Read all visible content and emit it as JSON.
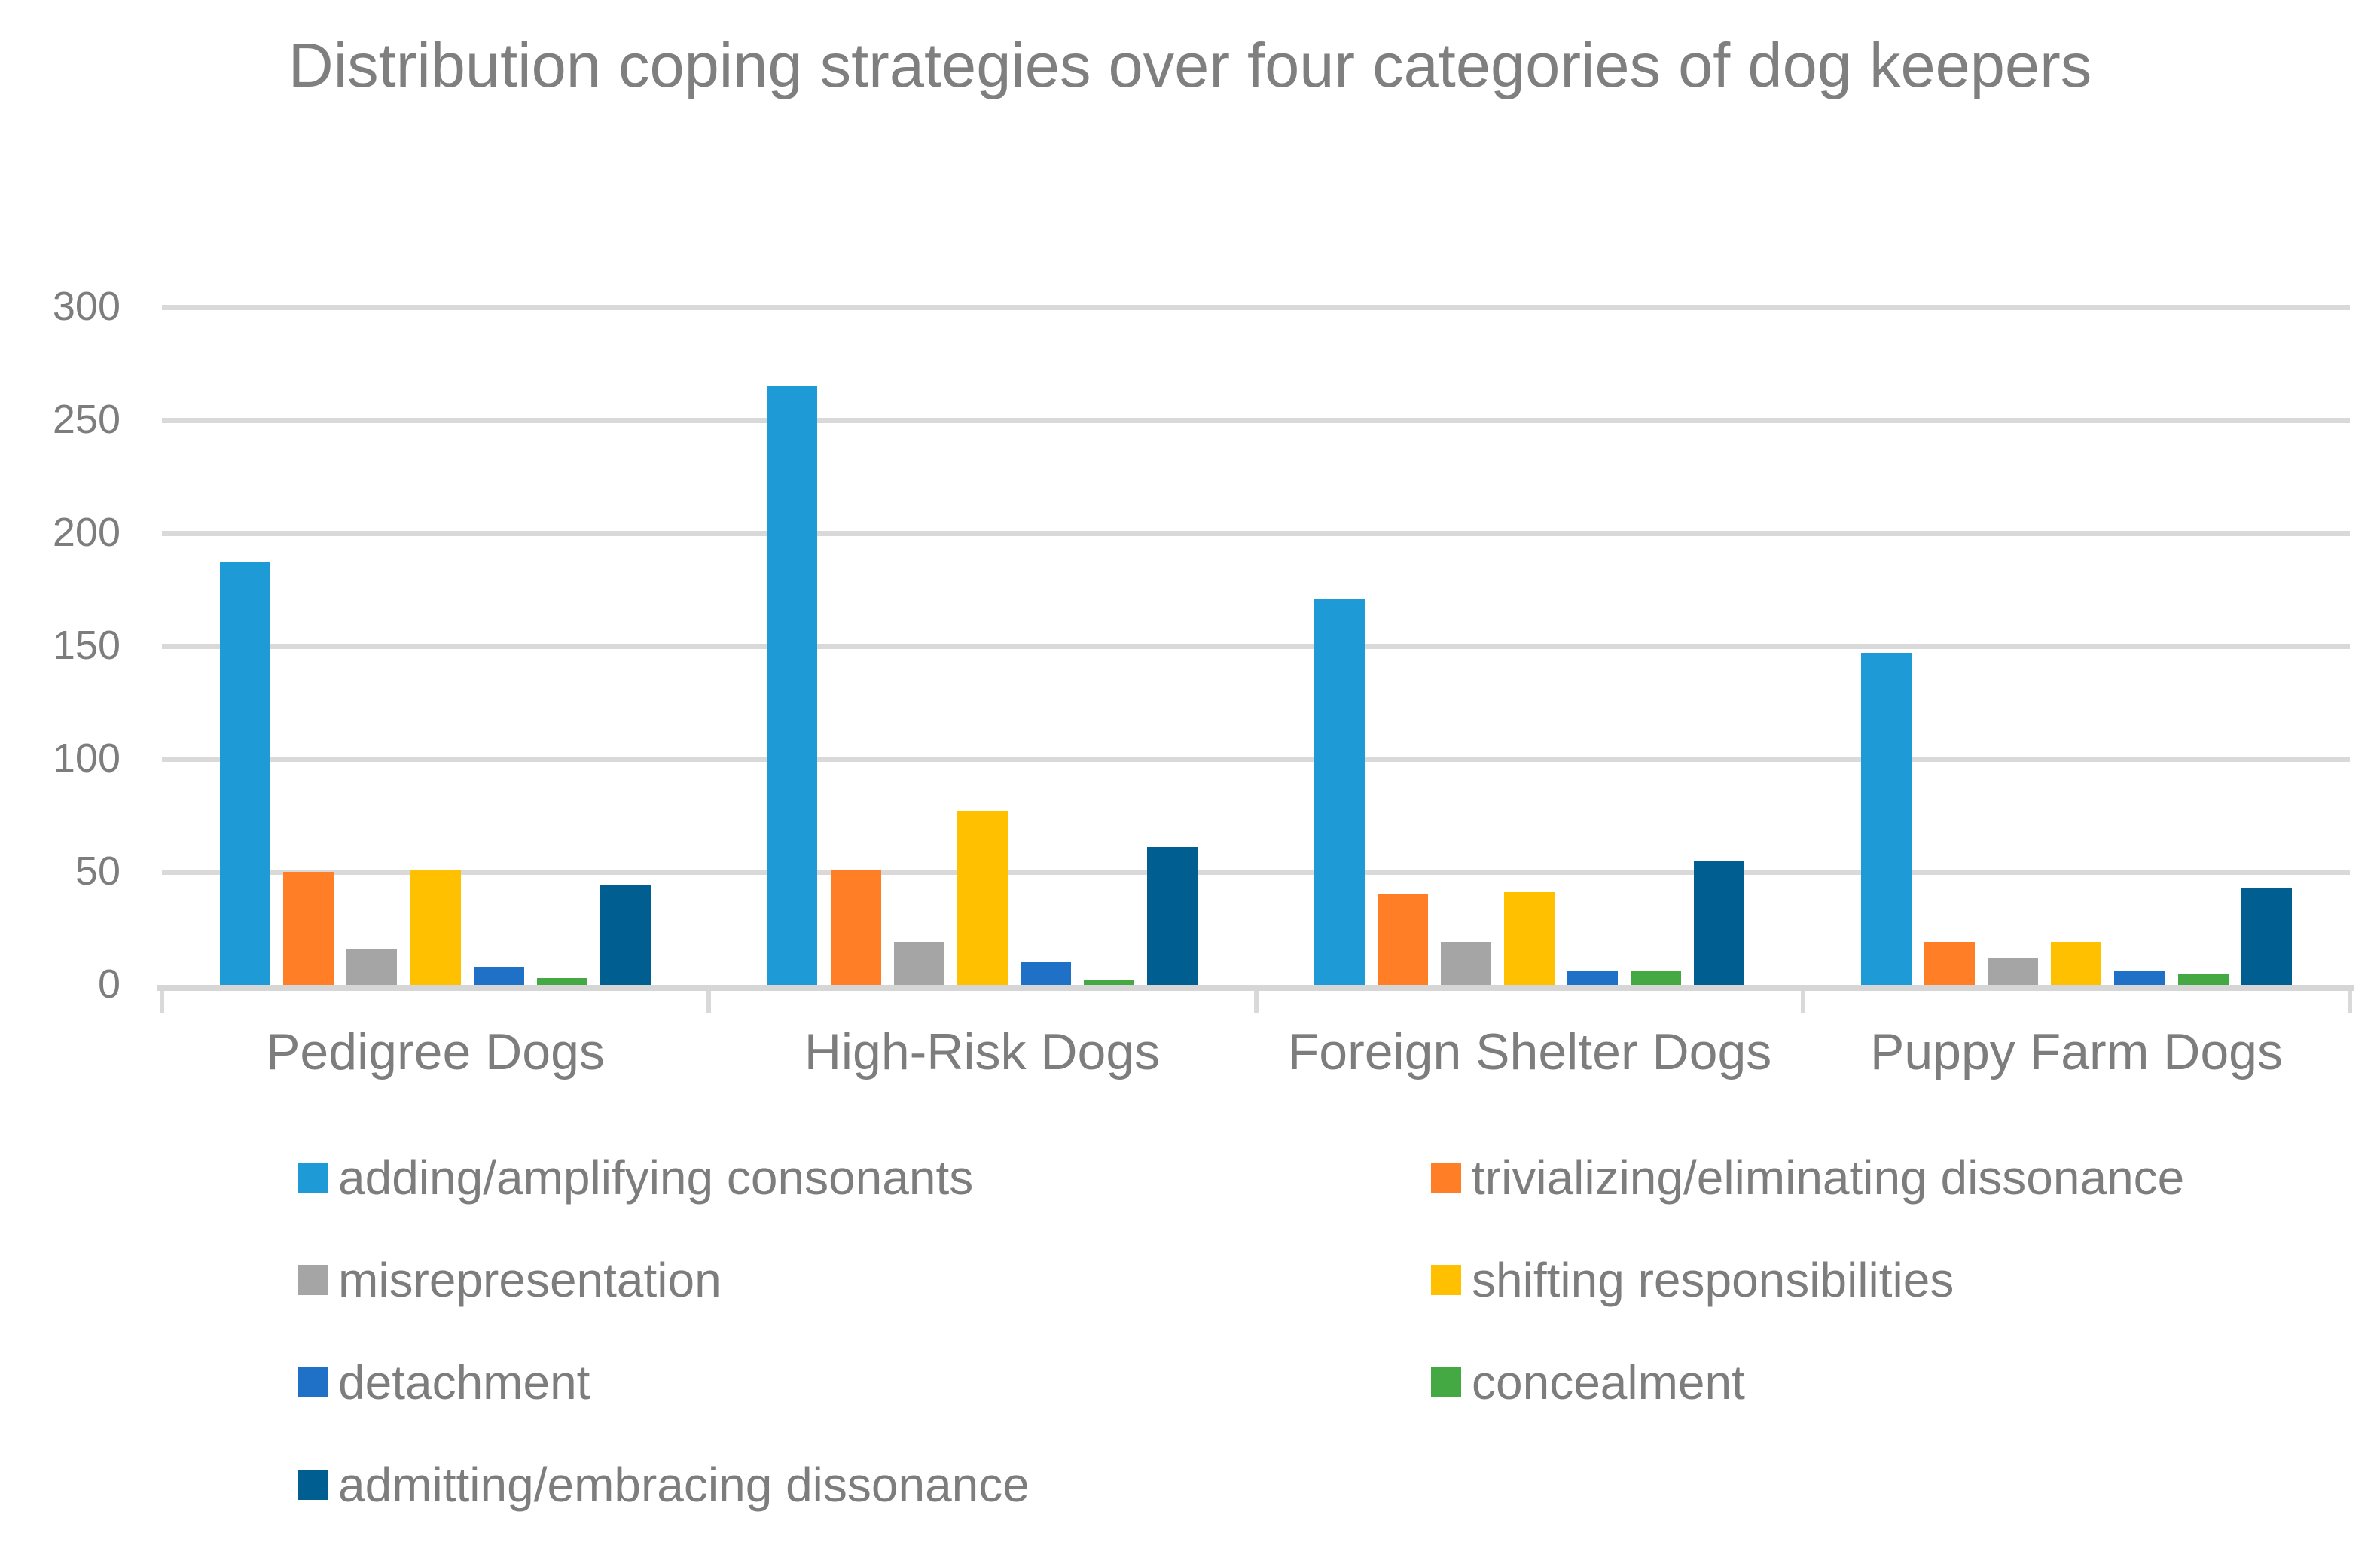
{
  "title": "Distribution coping strategies over four categories of dog keepers",
  "chart_data": {
    "type": "bar",
    "title": "Distribution coping strategies over four categories of dog keepers",
    "categories": [
      "Pedigree Dogs",
      "High-Risk Dogs",
      "Foreign Shelter Dogs",
      "Puppy Farm Dogs"
    ],
    "series": [
      {
        "name": "adding/amplifying consonants",
        "color": "#1e9ad6",
        "values": [
          187,
          265,
          171,
          147
        ]
      },
      {
        "name": "trivializing/eliminating dissonance",
        "color": "#ff7e26",
        "values": [
          50,
          51,
          40,
          19
        ]
      },
      {
        "name": "misrepresentation",
        "color": "#a5a5a5",
        "values": [
          16,
          19,
          19,
          12
        ]
      },
      {
        "name": "shifting responsibilities",
        "color": "#ffc000",
        "values": [
          51,
          77,
          41,
          19
        ]
      },
      {
        "name": "detachment",
        "color": "#1e71c7",
        "values": [
          8,
          10,
          6,
          6
        ]
      },
      {
        "name": "concealment",
        "color": "#44a942",
        "values": [
          3,
          2,
          6,
          5
        ]
      },
      {
        "name": "admitting/embracing dissonance",
        "color": "#005e91",
        "values": [
          44,
          61,
          55,
          43
        ]
      }
    ],
    "xlabel": "",
    "ylabel": "",
    "ylim": [
      0,
      300
    ],
    "yticks": [
      0,
      50,
      100,
      150,
      200,
      250,
      300
    ],
    "grid": true,
    "legend_position": "bottom",
    "colors": {
      "gridline": "#d9d9d9",
      "axis_text": "#7d7d7d",
      "title_text": "#7f7f7f",
      "background": "#ffffff"
    }
  }
}
